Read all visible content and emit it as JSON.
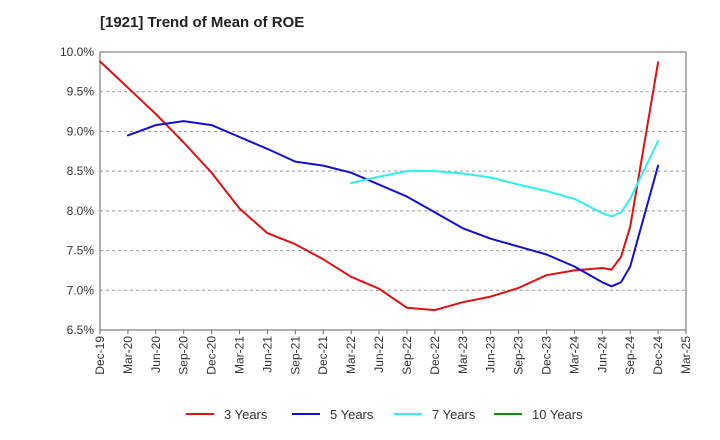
{
  "chart_data": {
    "type": "line",
    "title": "[1921]  Trend of Mean of ROE",
    "xlabel": "",
    "ylabel": "",
    "x_ticks": [
      "Dec-19",
      "Mar-20",
      "Jun-20",
      "Sep-20",
      "Dec-20",
      "Mar-21",
      "Jun-21",
      "Sep-21",
      "Dec-21",
      "Mar-22",
      "Jun-22",
      "Sep-22",
      "Dec-22",
      "Mar-23",
      "Jun-23",
      "Sep-23",
      "Dec-23",
      "Mar-24",
      "Jun-24",
      "Sep-24",
      "Dec-24",
      "Mar-25"
    ],
    "y_ticks": [
      "6.5%",
      "7.0%",
      "7.5%",
      "8.0%",
      "8.5%",
      "9.0%",
      "9.5%",
      "10.0%"
    ],
    "ylim": [
      6.5,
      10.0
    ],
    "grid": "horizontal-dashed",
    "legend_position": "bottom",
    "series": [
      {
        "name": "3 Years",
        "color": "#dd1111",
        "points": [
          [
            0,
            9.88
          ],
          [
            1,
            9.55
          ],
          [
            2,
            9.22
          ],
          [
            3,
            8.86
          ],
          [
            4,
            8.48
          ],
          [
            5,
            8.03
          ],
          [
            6,
            7.72
          ],
          [
            7,
            7.58
          ],
          [
            8,
            7.39
          ],
          [
            9,
            7.17
          ],
          [
            10,
            7.02
          ],
          [
            11,
            6.78
          ],
          [
            12,
            6.75
          ],
          [
            13,
            6.85
          ],
          [
            14,
            6.92
          ],
          [
            15,
            7.03
          ],
          [
            16,
            7.19
          ],
          [
            17,
            7.25
          ],
          [
            18,
            7.28
          ],
          [
            18.33,
            7.26
          ],
          [
            18.67,
            7.42
          ],
          [
            19,
            7.8
          ],
          [
            20,
            9.87
          ]
        ]
      },
      {
        "name": "5 Years",
        "color": "#1111cc",
        "points": [
          [
            1,
            8.95
          ],
          [
            2,
            9.08
          ],
          [
            3,
            9.13
          ],
          [
            4,
            9.08
          ],
          [
            5,
            8.93
          ],
          [
            6,
            8.78
          ],
          [
            7,
            8.62
          ],
          [
            8,
            8.57
          ],
          [
            9,
            8.48
          ],
          [
            10,
            8.33
          ],
          [
            11,
            8.18
          ],
          [
            12,
            7.98
          ],
          [
            13,
            7.78
          ],
          [
            14,
            7.65
          ],
          [
            15,
            7.55
          ],
          [
            16,
            7.45
          ],
          [
            17,
            7.3
          ],
          [
            18,
            7.1
          ],
          [
            18.33,
            7.05
          ],
          [
            18.67,
            7.1
          ],
          [
            19,
            7.3
          ],
          [
            20,
            8.57
          ]
        ]
      },
      {
        "name": "7 Years",
        "color": "#33eeee",
        "points": [
          [
            9,
            8.35
          ],
          [
            10,
            8.43
          ],
          [
            11,
            8.5
          ],
          [
            12,
            8.5
          ],
          [
            13,
            8.47
          ],
          [
            14,
            8.42
          ],
          [
            15,
            8.33
          ],
          [
            16,
            8.25
          ],
          [
            17,
            8.15
          ],
          [
            18,
            7.97
          ],
          [
            18.33,
            7.93
          ],
          [
            18.67,
            7.98
          ],
          [
            19,
            8.15
          ],
          [
            20,
            8.88
          ]
        ]
      },
      {
        "name": "10 Years",
        "color": "#118811",
        "points": []
      }
    ]
  }
}
